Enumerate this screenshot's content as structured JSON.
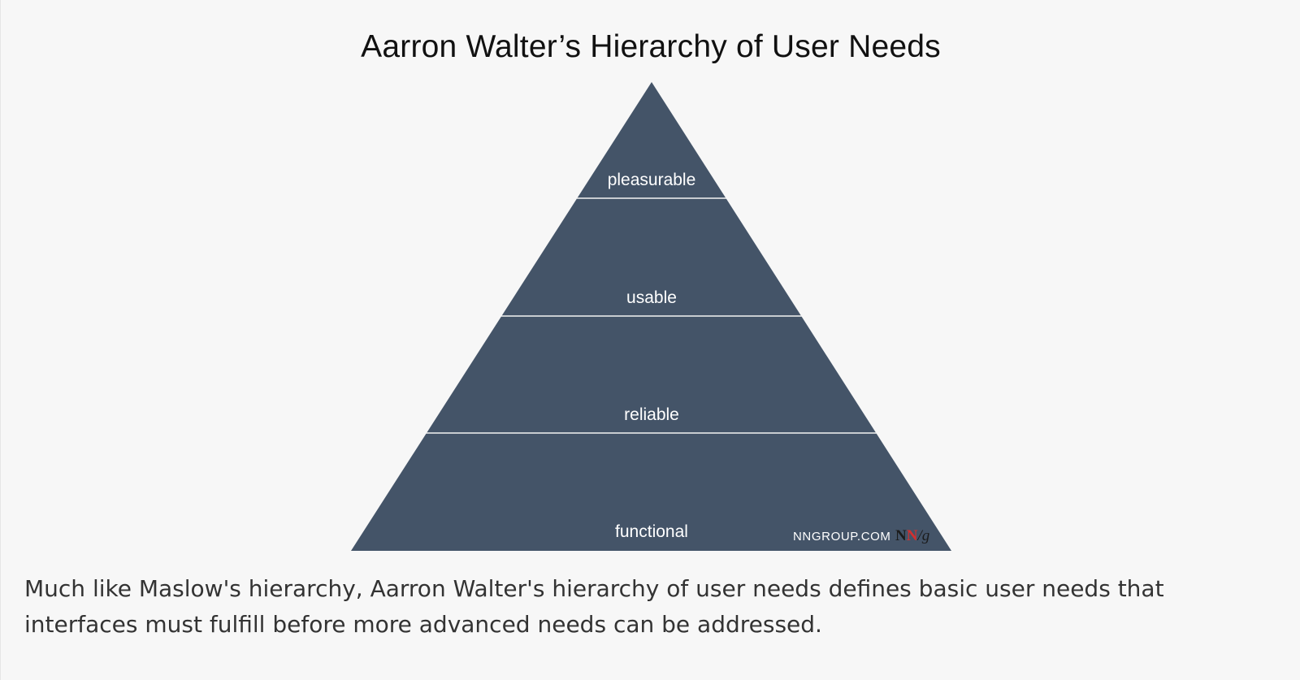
{
  "title": "Aarron Walter’s Hierarchy of User Needs",
  "tiers": [
    {
      "label": "pleasurable"
    },
    {
      "label": "usable"
    },
    {
      "label": "reliable"
    },
    {
      "label": "functional"
    }
  ],
  "colors": {
    "pyramid_fill": "#445468",
    "divider": "#f3f3f3",
    "background": "#f7f7f7",
    "logo_red": "#d32f2f",
    "logo_dark": "#1b1b1b"
  },
  "branding": {
    "site": "NNGROUP.COM",
    "logo_n1": "N",
    "logo_n2": "N",
    "logo_g": "/g"
  },
  "caption": "Much like Maslow's hierarchy, Aarron Walter's hierarchy of user needs defines basic user needs that interfaces must fulfill before more advanced needs can be addressed."
}
